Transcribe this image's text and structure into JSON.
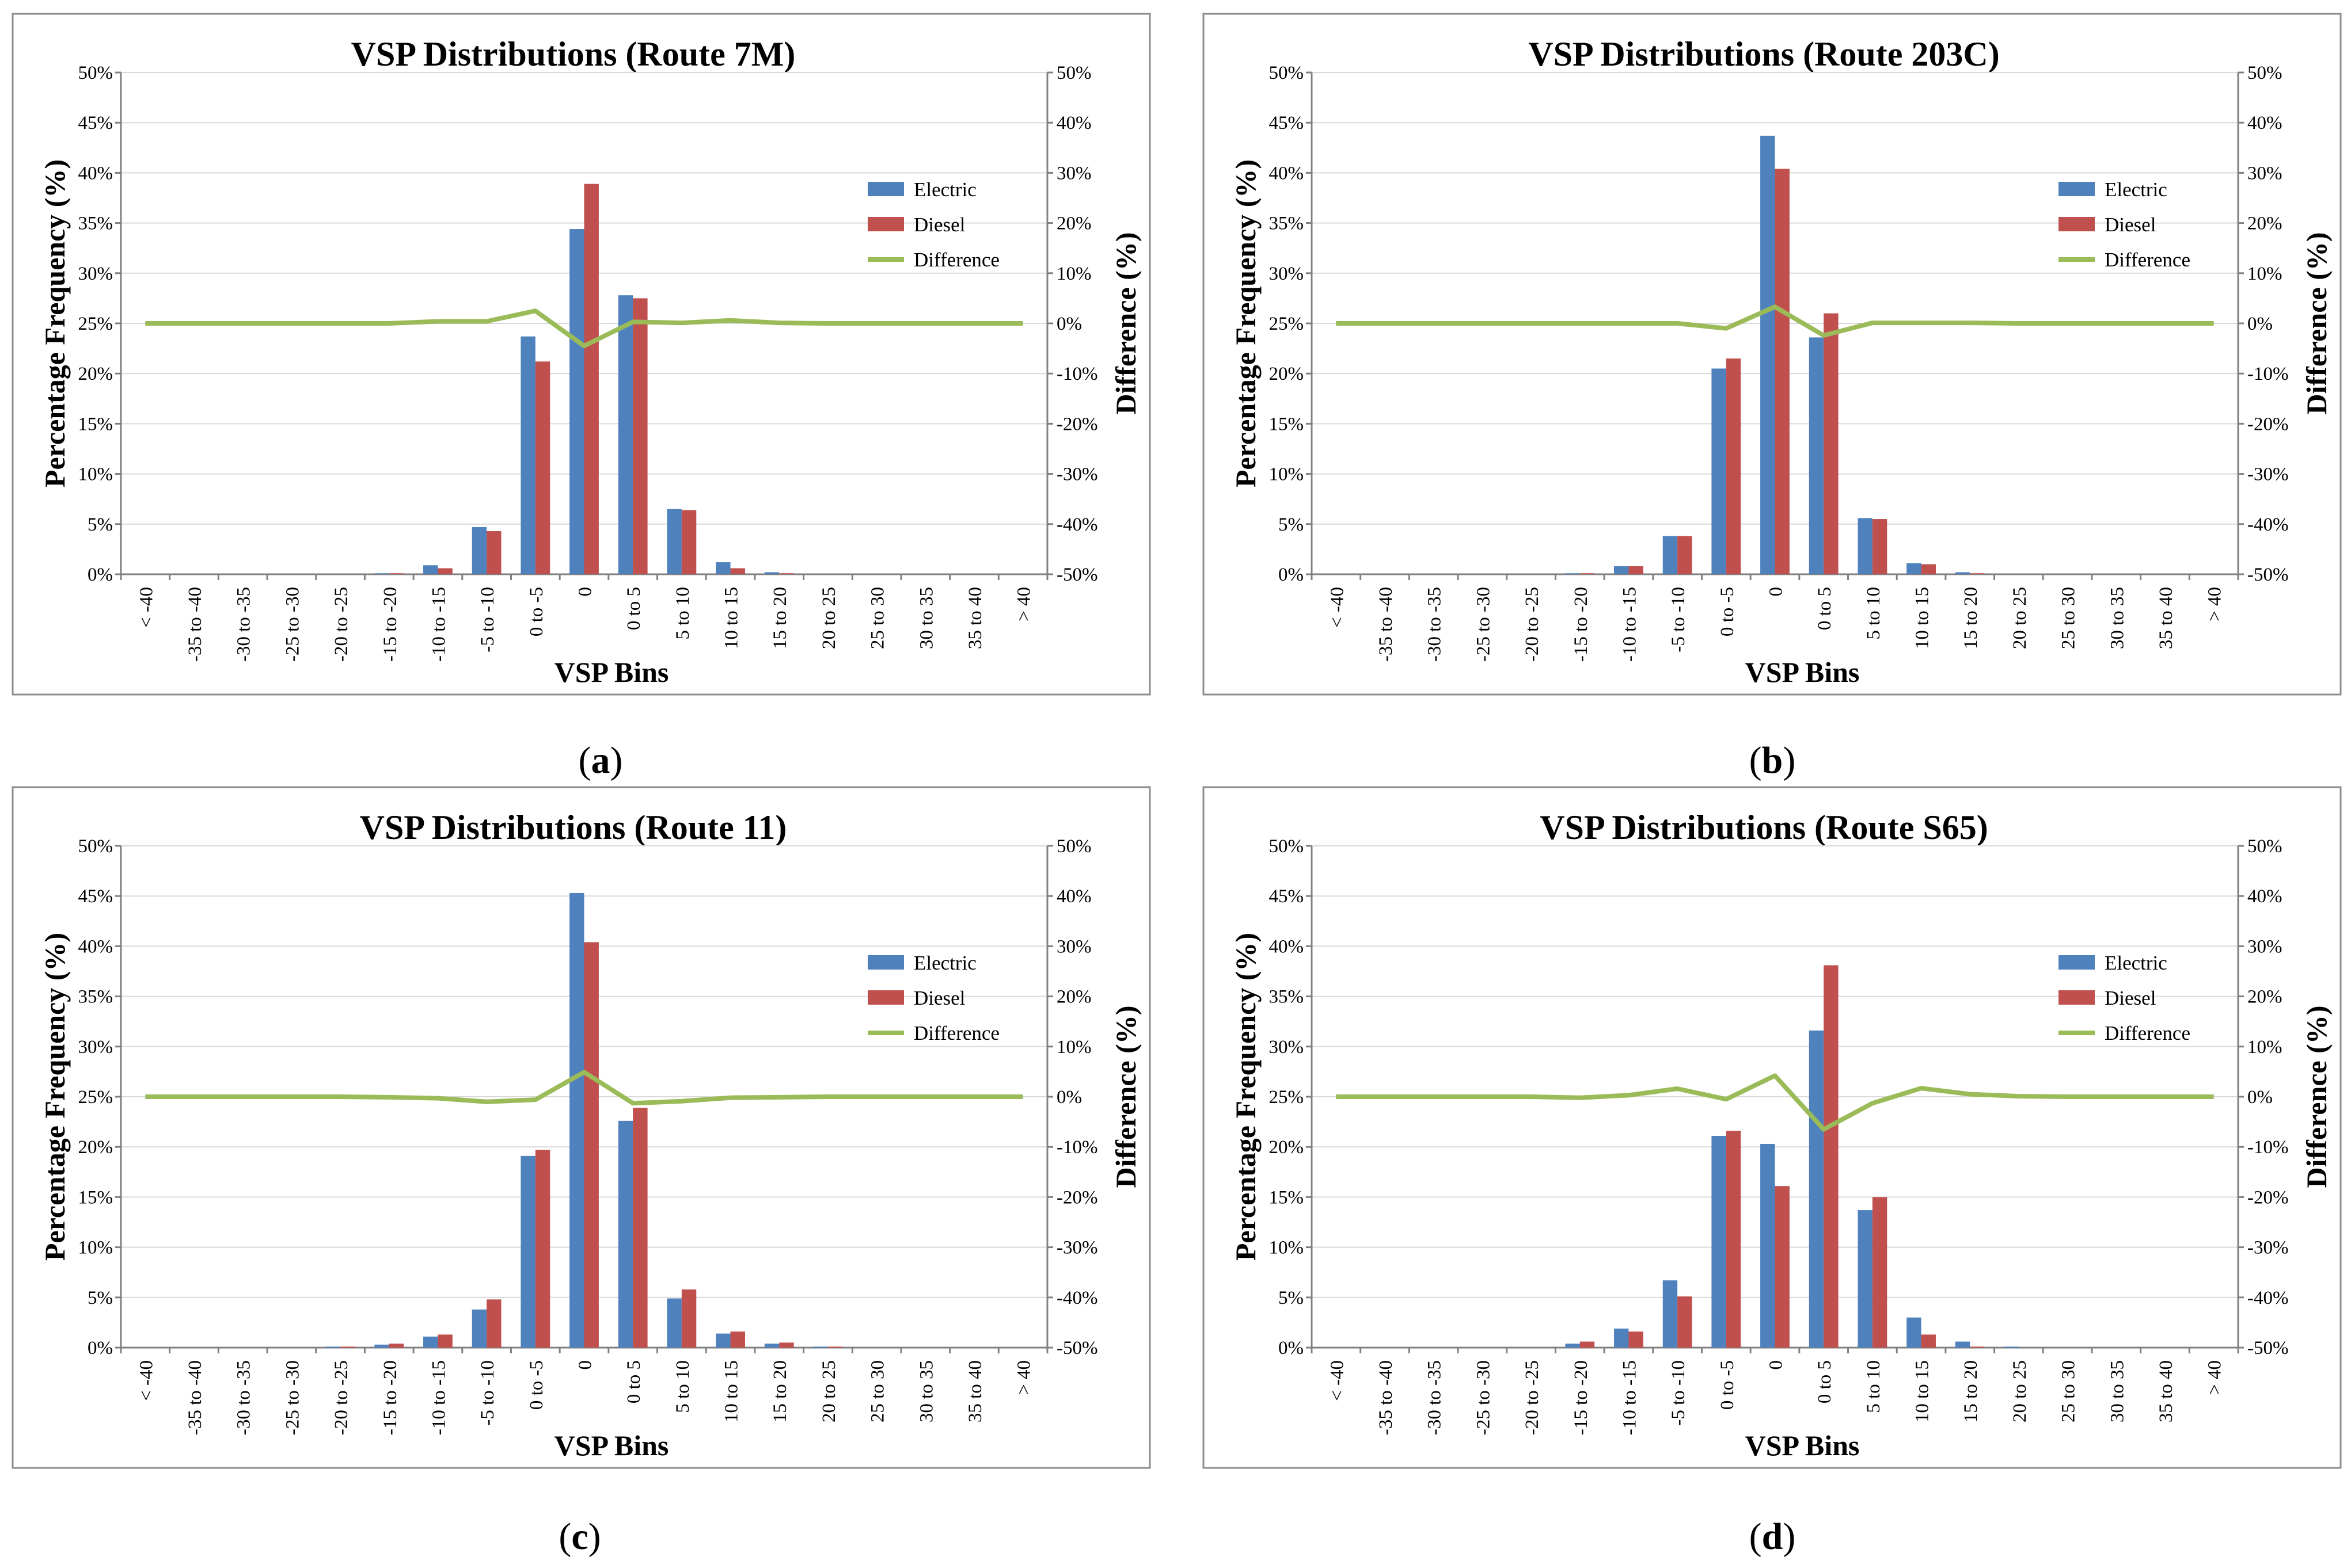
{
  "figure": {
    "panels": [
      {
        "caption_letter": "a",
        "route": "Route 7M"
      },
      {
        "caption_letter": "b",
        "route": "Route 203C"
      },
      {
        "caption_letter": "c",
        "route": "Route 11"
      },
      {
        "caption_letter": "d",
        "route": "Route S65"
      }
    ]
  },
  "colors": {
    "electric": "#4f81bd",
    "diesel": "#c0504d",
    "difference": "#9bbb59"
  },
  "chart_data": [
    {
      "type": "bar",
      "title": "VSP Distributions (Route 7M)",
      "caption": "(a)",
      "xlabel": "VSP Bins",
      "ylabel": "Percentage Frequency (%)",
      "y2label": "Difference (%)",
      "ylim": [
        0,
        50
      ],
      "y2lim": [
        -50,
        50
      ],
      "yticks": [
        "0%",
        "5%",
        "10%",
        "15%",
        "20%",
        "25%",
        "30%",
        "35%",
        "40%",
        "45%",
        "50%"
      ],
      "y2ticks": [
        "-50%",
        "-40%",
        "-30%",
        "-20%",
        "-10%",
        "0%",
        "10%",
        "20%",
        "30%",
        "40%",
        "50%"
      ],
      "grid": true,
      "legend": "upper-right",
      "categories": [
        "< -40",
        "-35 to -40",
        "-30 to -35",
        "-25 to -30",
        "-20 to -25",
        "-15 to -20",
        "-10 to -15",
        "-5 to -10",
        "0 to -5",
        "0",
        "0 to 5",
        "5 to 10",
        "10 to 15",
        "15 to 20",
        "20 to 25",
        "25 to 30",
        "30 to 35",
        "35 to 40",
        "> 40"
      ],
      "series": [
        {
          "name": "Electric",
          "kind": "bar",
          "axis": "left",
          "values": [
            0,
            0,
            0,
            0,
            0,
            0.1,
            0.9,
            4.7,
            23.7,
            34.4,
            27.8,
            6.5,
            1.2,
            0.2,
            0,
            0,
            0,
            0,
            0
          ]
        },
        {
          "name": "Diesel",
          "kind": "bar",
          "axis": "left",
          "values": [
            0,
            0,
            0,
            0,
            0,
            0.1,
            0.6,
            4.3,
            21.2,
            38.9,
            27.5,
            6.4,
            0.6,
            0.1,
            0,
            0,
            0,
            0,
            0
          ]
        },
        {
          "name": "Difference",
          "kind": "line",
          "axis": "right",
          "values": [
            0,
            0,
            0,
            0,
            0,
            0,
            0.4,
            0.4,
            2.5,
            -4.5,
            0.3,
            0.1,
            0.6,
            0.1,
            0,
            0,
            0,
            0,
            0
          ]
        }
      ]
    },
    {
      "type": "bar",
      "title": "VSP Distributions (Route 203C)",
      "caption": "(b)",
      "xlabel": "VSP Bins",
      "ylabel": "Percentage Frequency (%)",
      "y2label": "Difference (%)",
      "ylim": [
        0,
        50
      ],
      "y2lim": [
        -50,
        50
      ],
      "yticks": [
        "0%",
        "5%",
        "10%",
        "15%",
        "20%",
        "25%",
        "30%",
        "35%",
        "40%",
        "45%",
        "50%"
      ],
      "y2ticks": [
        "-50%",
        "-40%",
        "-30%",
        "-20%",
        "-10%",
        "0%",
        "10%",
        "20%",
        "30%",
        "40%",
        "50%"
      ],
      "grid": true,
      "legend": "upper-right",
      "categories": [
        "< -40",
        "-35 to -40",
        "-30 to -35",
        "-25 to -30",
        "-20 to -25",
        "-15 to -20",
        "-10 to -15",
        "-5 to -10",
        "0 to -5",
        "0",
        "0 to 5",
        "5 to 10",
        "10 to 15",
        "15 to 20",
        "20 to 25",
        "25 to 30",
        "30 to 35",
        "35 to 40",
        "> 40"
      ],
      "series": [
        {
          "name": "Electric",
          "kind": "bar",
          "axis": "left",
          "values": [
            0,
            0,
            0,
            0,
            0,
            0.1,
            0.8,
            3.8,
            20.5,
            43.7,
            23.6,
            5.6,
            1.1,
            0.2,
            0,
            0,
            0,
            0,
            0
          ]
        },
        {
          "name": "Diesel",
          "kind": "bar",
          "axis": "left",
          "values": [
            0,
            0,
            0,
            0,
            0,
            0.1,
            0.8,
            3.8,
            21.5,
            40.4,
            26.0,
            5.5,
            1.0,
            0.1,
            0,
            0,
            0,
            0,
            0
          ]
        },
        {
          "name": "Difference",
          "kind": "line",
          "axis": "right",
          "values": [
            0,
            0,
            0,
            0,
            0,
            0,
            0,
            0,
            -1.0,
            3.3,
            -2.4,
            0.1,
            0.1,
            0.1,
            0,
            0,
            0,
            0,
            0
          ]
        }
      ]
    },
    {
      "type": "bar",
      "title": "VSP Distributions (Route 11)",
      "caption": "(c)",
      "xlabel": "VSP Bins",
      "ylabel": "Percentage Frequency (%)",
      "y2label": "Difference (%)",
      "ylim": [
        0,
        50
      ],
      "y2lim": [
        -50,
        50
      ],
      "yticks": [
        "0%",
        "5%",
        "10%",
        "15%",
        "20%",
        "25%",
        "30%",
        "35%",
        "40%",
        "45%",
        "50%"
      ],
      "y2ticks": [
        "-50%",
        "-40%",
        "-30%",
        "-20%",
        "-10%",
        "0%",
        "10%",
        "20%",
        "30%",
        "40%",
        "50%"
      ],
      "grid": true,
      "legend": "upper-right",
      "categories": [
        "< -40",
        "-35 to -40",
        "-30 to -35",
        "-25 to -30",
        "-20 to -25",
        "-15 to -20",
        "-10 to -15",
        "-5 to -10",
        "0 to -5",
        "0",
        "0 to 5",
        "5 to 10",
        "10 to 15",
        "15 to 20",
        "20 to 25",
        "25 to 30",
        "30 to 35",
        "35 to 40",
        "> 40"
      ],
      "series": [
        {
          "name": "Electric",
          "kind": "bar",
          "axis": "left",
          "values": [
            0,
            0,
            0,
            0,
            0.1,
            0.3,
            1.1,
            3.8,
            19.1,
            45.3,
            22.6,
            4.9,
            1.4,
            0.4,
            0.1,
            0,
            0,
            0,
            0
          ]
        },
        {
          "name": "Diesel",
          "kind": "bar",
          "axis": "left",
          "values": [
            0,
            0,
            0,
            0,
            0.1,
            0.4,
            1.3,
            4.8,
            19.7,
            40.4,
            23.9,
            5.8,
            1.6,
            0.5,
            0.1,
            0,
            0,
            0,
            0
          ]
        },
        {
          "name": "Difference",
          "kind": "line",
          "axis": "right",
          "values": [
            0,
            0,
            0,
            0,
            0,
            -0.1,
            -0.3,
            -1.0,
            -0.6,
            4.9,
            -1.3,
            -0.9,
            -0.2,
            -0.1,
            0,
            0,
            0,
            0,
            0
          ]
        }
      ]
    },
    {
      "type": "bar",
      "title": "VSP Distributions (Route S65)",
      "caption": "(d)",
      "xlabel": "VSP Bins",
      "ylabel": "Percentage Frequency (%)",
      "y2label": "Difference (%)",
      "ylim": [
        0,
        50
      ],
      "y2lim": [
        -50,
        50
      ],
      "yticks": [
        "0%",
        "5%",
        "10%",
        "15%",
        "20%",
        "25%",
        "30%",
        "35%",
        "40%",
        "45%",
        "50%"
      ],
      "y2ticks": [
        "-50%",
        "-40%",
        "-30%",
        "-20%",
        "-10%",
        "0%",
        "10%",
        "20%",
        "30%",
        "40%",
        "50%"
      ],
      "grid": true,
      "legend": "upper-right",
      "categories": [
        "< -40",
        "-35 to -40",
        "-30 to -35",
        "-25 to -30",
        "-20 to -25",
        "-15 to -20",
        "-10 to -15",
        "-5 to -10",
        "0 to -5",
        "0",
        "0 to 5",
        "5 to 10",
        "10 to 15",
        "15 to 20",
        "20 to 25",
        "25 to 30",
        "30 to 35",
        "35 to 40",
        "> 40"
      ],
      "series": [
        {
          "name": "Electric",
          "kind": "bar",
          "axis": "left",
          "values": [
            0,
            0,
            0,
            0,
            0,
            0.4,
            1.9,
            6.7,
            21.1,
            20.3,
            31.6,
            13.7,
            3.0,
            0.6,
            0.1,
            0,
            0,
            0,
            0
          ]
        },
        {
          "name": "Diesel",
          "kind": "bar",
          "axis": "left",
          "values": [
            0,
            0,
            0,
            0,
            0,
            0.6,
            1.6,
            5.1,
            21.6,
            16.1,
            38.1,
            15.0,
            1.3,
            0.1,
            0,
            0,
            0,
            0,
            0
          ]
        },
        {
          "name": "Difference",
          "kind": "line",
          "axis": "right",
          "values": [
            0,
            0,
            0,
            0,
            0,
            -0.2,
            0.3,
            1.6,
            -0.5,
            4.2,
            -6.5,
            -1.3,
            1.7,
            0.5,
            0.1,
            0,
            0,
            0,
            0
          ]
        }
      ]
    }
  ]
}
